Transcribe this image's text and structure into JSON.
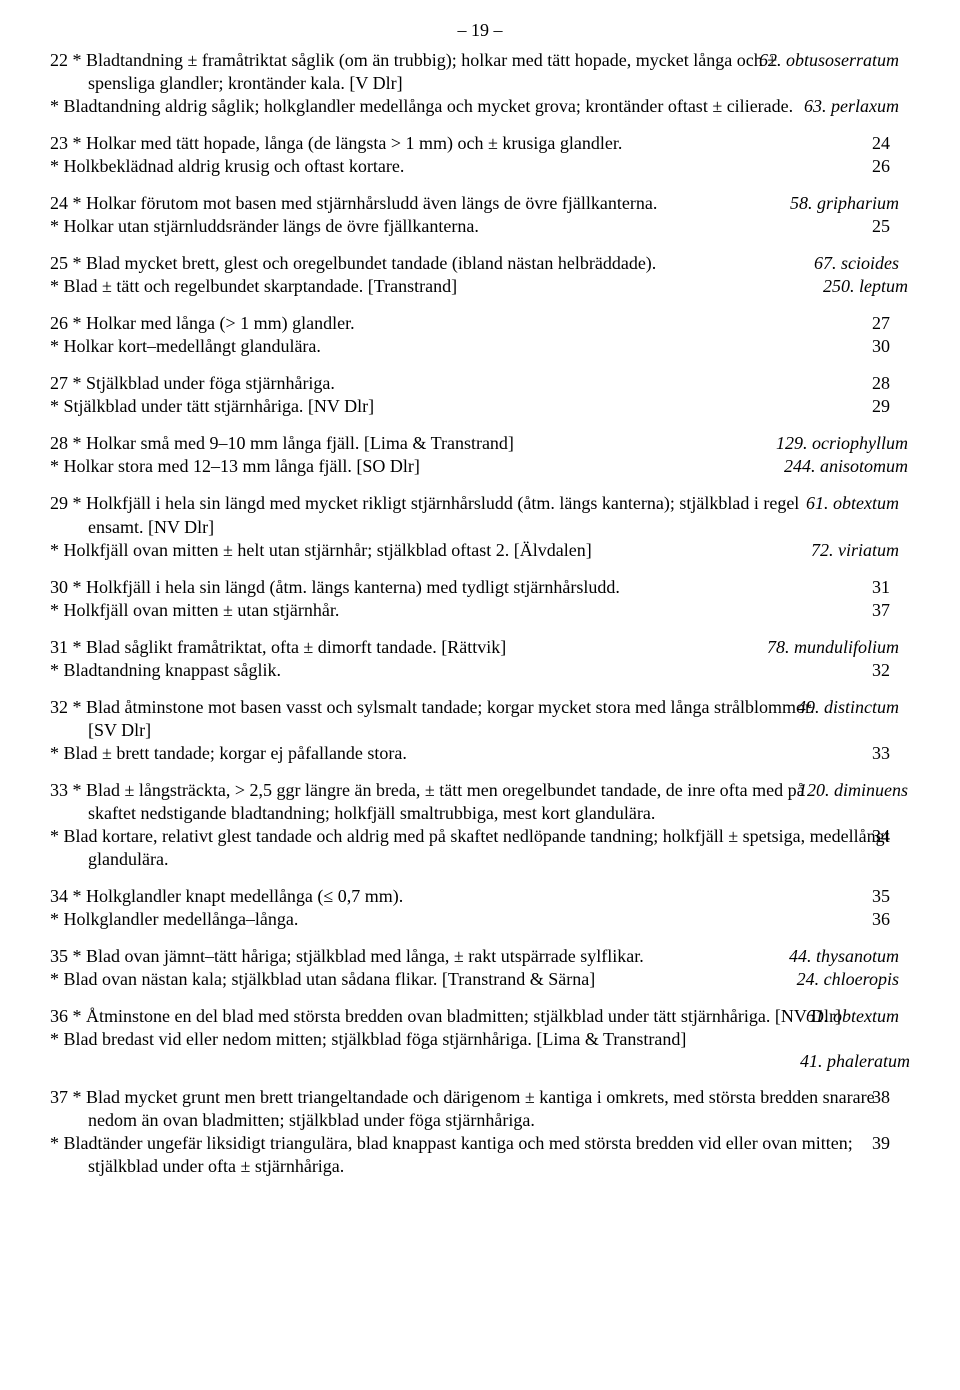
{
  "page_number": "– 19 –",
  "groups": [
    {
      "entries": [
        {
          "lead": "22 *",
          "text": "Bladtandning ± framåtriktat såglik (om än trubbig); holkar med tätt hopade, mycket långa och ± spensliga glandler; krontänder kala. [V Dlr]",
          "result": "62. obtusoserratum",
          "resultItalic": true
        },
        {
          "lead": "*",
          "text": "Bladtandning aldrig såglik; holkglandler medellånga och mycket grova; krontänder oftast ± cilierade.",
          "result": "63. perlaxum",
          "resultItalic": true
        }
      ]
    },
    {
      "entries": [
        {
          "lead": "23 *",
          "text": "Holkar med tätt hopade, långa (de längsta > 1 mm) och ± krusiga glandler.",
          "result": "24",
          "resultItalic": false
        },
        {
          "lead": "*",
          "text": "Holkbeklädnad aldrig krusig och oftast kortare.",
          "result": "26",
          "resultItalic": false
        }
      ]
    },
    {
      "entries": [
        {
          "lead": "24 *",
          "text": "Holkar förutom mot basen med stjärnhårsludd även längs de övre fjällkanterna.",
          "result": "58. gripharium",
          "resultItalic": true
        },
        {
          "lead": "*",
          "text": "Holkar utan stjärnluddsränder längs de övre fjällkanterna.",
          "result": "25",
          "resultItalic": false
        }
      ]
    },
    {
      "entries": [
        {
          "lead": "25 *",
          "text": "Blad mycket brett, glest och oregelbundet tandade (ibland nästan helbräddade).",
          "result": "67. scioides",
          "resultItalic": true
        },
        {
          "lead": "*",
          "text": "Blad ± tätt och regelbundet skarptandade. [Transtrand]",
          "result": "250. leptum",
          "resultItalic": true
        }
      ]
    },
    {
      "entries": [
        {
          "lead": "26 *",
          "text": "Holkar med långa (> 1 mm) glandler.",
          "result": "27",
          "resultItalic": false
        },
        {
          "lead": "*",
          "text": "Holkar kort–medellångt glandulära.",
          "result": "30",
          "resultItalic": false
        }
      ]
    },
    {
      "entries": [
        {
          "lead": "27 *",
          "text": "Stjälkblad under föga stjärnhåriga.",
          "result": "28",
          "resultItalic": false
        },
        {
          "lead": "*",
          "text": "Stjälkblad under tätt stjärnhåriga. [NV Dlr]",
          "result": "29",
          "resultItalic": false
        }
      ]
    },
    {
      "entries": [
        {
          "lead": "28 *",
          "text": "Holkar små med 9–10 mm långa fjäll. [Lima & Transtrand]",
          "result": "129. ocriophyllum",
          "resultItalic": true
        },
        {
          "lead": "*",
          "text": "Holkar stora med 12–13 mm långa fjäll. [SO Dlr]",
          "result": "244. anisotomum",
          "resultItalic": true
        }
      ]
    },
    {
      "entries": [
        {
          "lead": "29 *",
          "text": "Holkfjäll i hela sin längd med mycket rikligt stjärnhårsludd (åtm. längs kanterna); stjälkblad i regel ensamt. [NV Dlr]",
          "result": "61. obtextum",
          "resultItalic": true
        },
        {
          "lead": "*",
          "text": "Holkfjäll ovan mitten ± helt utan stjärnhår; stjälkblad oftast 2. [Älvdalen]",
          "result": "72. viriatum",
          "resultItalic": true
        }
      ]
    },
    {
      "entries": [
        {
          "lead": "30 *",
          "text": "Holkfjäll i hela sin längd (åtm. längs kanterna) med tydligt stjärnhårsludd.",
          "result": "31",
          "resultItalic": false
        },
        {
          "lead": "*",
          "text": "Holkfjäll ovan mitten ± utan stjärnhår.",
          "result": "37",
          "resultItalic": false
        }
      ]
    },
    {
      "entries": [
        {
          "lead": "31 *",
          "text": "Blad såglikt framåtriktat, ofta ± dimorft tandade. [Rättvik]",
          "result": "78. mundulifolium",
          "resultItalic": true
        },
        {
          "lead": "*",
          "text": "Bladtandning knappast såglik.",
          "result": "32",
          "resultItalic": false
        }
      ]
    },
    {
      "entries": [
        {
          "lead": "32 *",
          "text": "Blad åtminstone mot basen vasst och sylsmalt tandade; korgar mycket stora med långa strålblommor. [SV Dlr]",
          "result": "49. distinctum",
          "resultItalic": true
        },
        {
          "lead": "*",
          "text": "Blad ± brett tandade; korgar ej påfallande stora.",
          "result": "33",
          "resultItalic": false
        }
      ]
    },
    {
      "entries": [
        {
          "lead": "33 *",
          "text": "Blad ± långsträckta, > 2,5 ggr längre än breda, ± tätt men oregelbundet tandade, de inre ofta med på skaftet nedstigande bladtandning; holkfjäll smaltrubbiga, mest kort glandulära.",
          "result": "120. diminuens",
          "resultItalic": true
        },
        {
          "lead": "*",
          "text": "Blad kortare, relativt glest tandade och aldrig med på skaftet nedlöpande tandning; holkfjäll ± spetsiga, medellångt glandulära.",
          "result": "34",
          "resultItalic": false
        }
      ]
    },
    {
      "entries": [
        {
          "lead": "34 *",
          "text": "Holkglandler knapt medellånga (≤ 0,7 mm).",
          "result": "35",
          "resultItalic": false
        },
        {
          "lead": "*",
          "text": "Holkglandler medellånga–långa.",
          "result": "36",
          "resultItalic": false
        }
      ]
    },
    {
      "entries": [
        {
          "lead": "35 *",
          "text": "Blad ovan jämnt–tätt håriga; stjälkblad med långa, ± rakt utspärrade sylflikar.",
          "result": "44. thysanotum",
          "resultItalic": true
        },
        {
          "lead": "*",
          "text": "Blad ovan nästan kala; stjälkblad utan sådana flikar. [Transtrand & Särna]",
          "result": "24. chloeropis",
          "resultItalic": true
        }
      ]
    },
    {
      "entries": [
        {
          "lead": "36 *",
          "text": "Åtminstone en del blad med största bredden ovan bladmitten; stjälkblad under tätt stjärnhåriga. [NV Dlr]",
          "result": "61. obtextum",
          "resultItalic": true
        },
        {
          "lead": "*",
          "text": "Blad bredast vid eller nedom mitten; stjälkblad föga stjärnhåriga. [Lima & Transtrand]",
          "result": "",
          "resultItalic": false,
          "rightLine": "41. phaleratum",
          "rightLineItalic": true
        }
      ]
    },
    {
      "entries": [
        {
          "lead": "37 *",
          "text": "Blad mycket grunt men brett triangeltandade och därigenom ± kantiga i omkrets, med största bredden snarare nedom än ovan bladmitten; stjälkblad under föga stjärnhåriga.",
          "result": "38",
          "resultItalic": false
        },
        {
          "lead": "*",
          "text": "Bladtänder ungefär liksidigt triangulära, blad knappast kantiga och med största bredden vid eller ovan mitten; stjälkblad under ofta ± stjärnhåriga.",
          "result": "39",
          "resultItalic": false
        }
      ]
    }
  ]
}
